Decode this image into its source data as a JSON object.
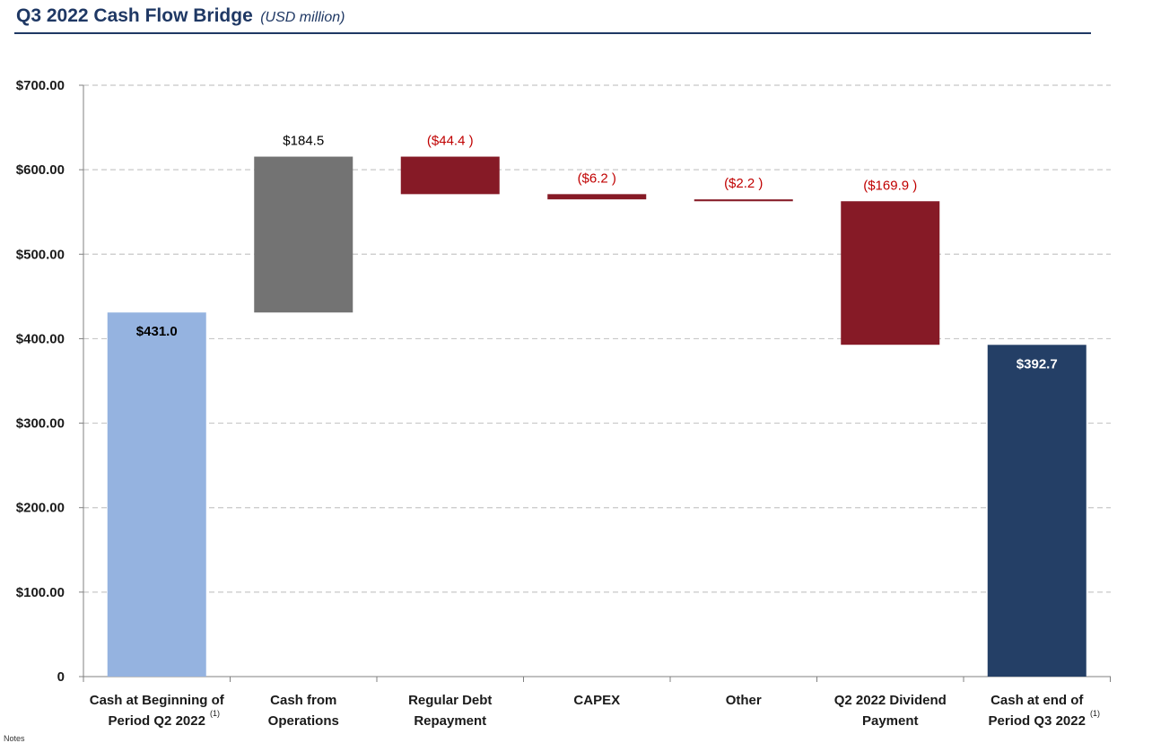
{
  "header": {
    "title": "Q3 2022 Cash Flow Bridge",
    "subtitle": "(USD million)"
  },
  "chart_data": {
    "type": "bar",
    "subtype": "waterfall",
    "title": "Q3 2022 Cash Flow Bridge",
    "subtitle": "(USD million)",
    "xlabel": "",
    "ylabel": "",
    "ylim": [
      0,
      700
    ],
    "grid": true,
    "yticks": [
      0,
      100,
      200,
      300,
      400,
      500,
      600,
      700
    ],
    "ytick_labels": [
      "0",
      "$100.00",
      "$200.00",
      "$300.00",
      "$400.00",
      "$500.00",
      "$600.00",
      "$700.00"
    ],
    "categories": [
      {
        "line1": "Cash at Beginning of",
        "line2": "Period Q2 2022",
        "note": "(1)"
      },
      {
        "line1": "Cash from",
        "line2": "Operations",
        "note": ""
      },
      {
        "line1": "Regular Debt",
        "line2": "Repayment",
        "note": ""
      },
      {
        "line1": "CAPEX",
        "line2": "",
        "note": ""
      },
      {
        "line1": "Other",
        "line2": "",
        "note": ""
      },
      {
        "line1": "Q2 2022 Dividend",
        "line2": "Payment",
        "note": ""
      },
      {
        "line1": "Cash at end of",
        "line2": "Period Q3 2022",
        "note": "(1)"
      }
    ],
    "values": [
      431.0,
      184.5,
      -44.4,
      -6.2,
      -2.2,
      -169.9,
      392.7
    ],
    "bar_kinds": [
      "total",
      "delta",
      "delta",
      "delta",
      "delta",
      "delta",
      "total"
    ],
    "data_labels": [
      "$431.0",
      "$184.5",
      "($44.4 )",
      "($6.2 )",
      "($2.2 )",
      "($169.9 )",
      "$392.7"
    ],
    "colors": [
      "#95b3e0",
      "#737373",
      "#861a26",
      "#861a26",
      "#861a26",
      "#861a26",
      "#243f66"
    ],
    "label_colors": [
      "#000000",
      "#000000",
      "#c00000",
      "#c00000",
      "#c00000",
      "#c00000",
      "#ffffff"
    ]
  },
  "footer": {
    "note": "Notes"
  }
}
